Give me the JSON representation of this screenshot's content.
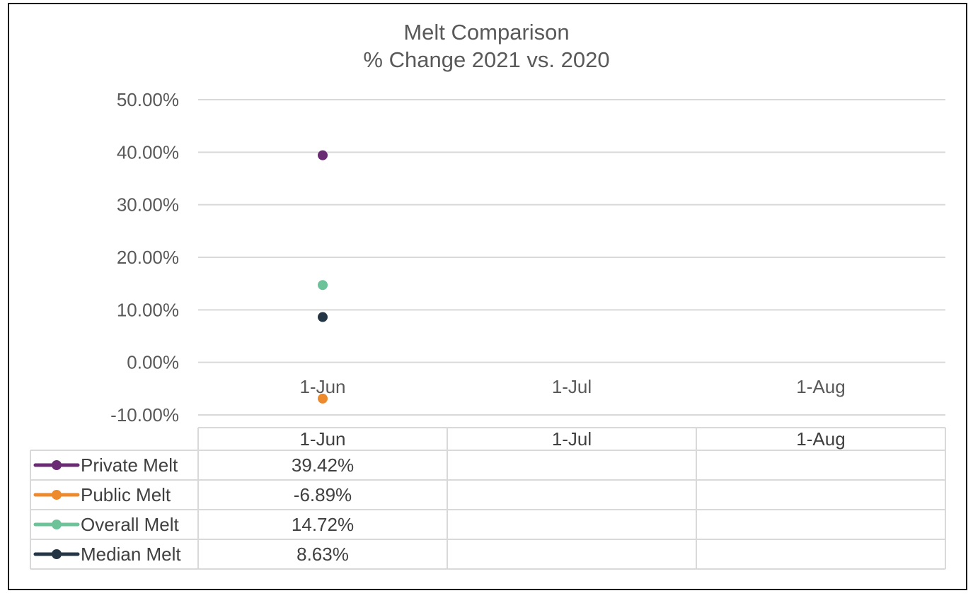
{
  "chart_data": {
    "type": "line",
    "title": "Melt Comparison",
    "subtitle": "% Change 2021 vs. 2020",
    "xlabel": "",
    "ylabel": "",
    "categories": [
      "1-Jun",
      "1-Jul",
      "1-Aug"
    ],
    "ylim": [
      -0.1,
      0.5
    ],
    "yticks": [
      "50.00%",
      "40.00%",
      "30.00%",
      "20.00%",
      "10.00%",
      "0.00%",
      "-10.00%"
    ],
    "grid": true,
    "legend": "data-table",
    "series": [
      {
        "name": "Private Melt",
        "color": "#6B2A74",
        "values": [
          0.3942,
          null,
          null
        ],
        "labels": [
          "39.42%",
          "",
          ""
        ]
      },
      {
        "name": "Public Melt",
        "color": "#EE8A2E",
        "values": [
          -0.0689,
          null,
          null
        ],
        "labels": [
          "-6.89%",
          "",
          ""
        ]
      },
      {
        "name": "Overall Melt",
        "color": "#6CC39A",
        "values": [
          0.1472,
          null,
          null
        ],
        "labels": [
          "14.72%",
          "",
          ""
        ]
      },
      {
        "name": "Median Melt",
        "color": "#243646",
        "values": [
          0.0863,
          null,
          null
        ],
        "labels": [
          "8.63%",
          "",
          ""
        ]
      }
    ]
  }
}
